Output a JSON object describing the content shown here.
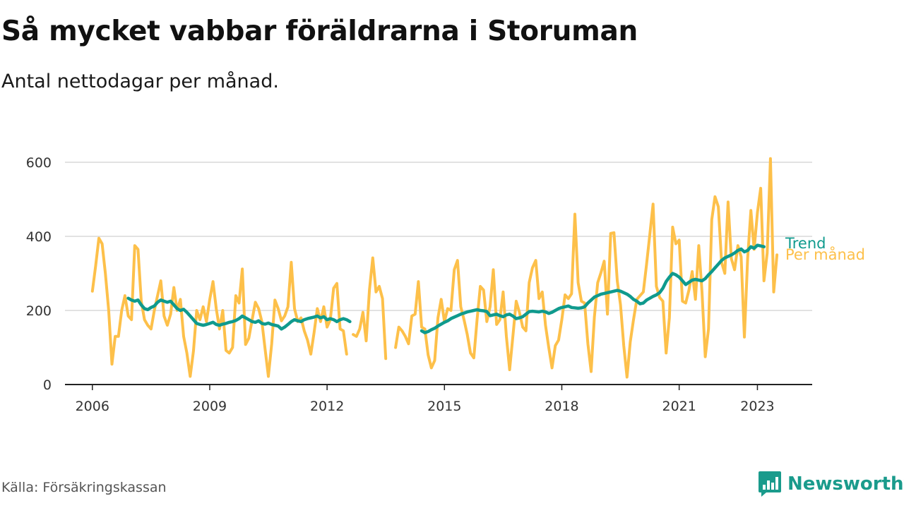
{
  "header": {
    "title": "Så mycket vabbar föräldrarna i Storuman",
    "subtitle": "Antal nettodagar per månad."
  },
  "footer": {
    "source": "Källa: Försäkringskassan",
    "brand": "Newsworthy",
    "brand_icon": "bar-chart-icon",
    "brand_color": "#1a9b8c"
  },
  "chart_data": {
    "type": "line",
    "title": "Så mycket vabbar föräldrarna i Storuman",
    "subtitle": "Antal nettodagar per månad.",
    "xlabel": "",
    "ylabel": "",
    "xlim": [
      2005.3,
      2024.4
    ],
    "ylim": [
      0,
      600
    ],
    "x_ticks": [
      2006,
      2009,
      2012,
      2015,
      2018,
      2021,
      2023
    ],
    "y_ticks": [
      0,
      200,
      400,
      600
    ],
    "grid": "horizontal",
    "legend": "end-of-line labels",
    "series": [
      {
        "name": "Per månad",
        "color": "#fdc04a",
        "segments": [
          {
            "x_start": 2006.0,
            "x_step": 0.0833333,
            "values": [
              252,
              320,
              395,
              380,
              300,
              200,
              55,
              130,
              130,
              200,
              240,
              185,
              175,
              375,
              365,
              225,
              175,
              160,
              150,
              200,
              240,
              280,
              185,
              160,
              190,
              262,
              200,
              230,
              130,
              85,
              22,
              90,
              200,
              175,
              210,
              170,
              230,
              278,
              205,
              150,
              200,
              92,
              85,
              100,
              240,
              220,
              312,
              108,
              125,
              175,
              222,
              205,
              170,
              95,
              22,
              110,
              228,
              205,
              172,
              185,
              210,
              330,
              205,
              170,
              180,
              145,
              120,
              82,
              140,
              205,
              170,
              210,
              155,
              175,
              260,
              273,
              150,
              145,
              82
            ]
          },
          {
            "x_start": 2012.6667,
            "x_step": 0.0833333,
            "values": [
              135,
              130,
              150,
              195,
              118,
              255,
              342,
              250,
              265,
              232,
              70
            ]
          },
          {
            "x_start": 2013.75,
            "x_step": 0.0833333,
            "values": [
              100,
              155,
              145,
              130,
              110,
              185,
              190,
              278,
              155,
              150,
              80,
              45,
              65,
              180,
              230,
              170,
              205,
              200,
              310,
              335,
              210,
              175,
              135,
              85,
              72,
              175,
              265,
              255,
              170,
              210,
              310,
              162,
              175,
              250,
              130,
              40,
              130,
              225,
              195,
              155,
              145,
              275,
              315,
              335,
              232,
              250,
              160,
              100,
              45,
              105,
              120,
              175,
              242,
              232,
              245,
              460,
              275,
              225,
              220,
              110,
              35,
              182,
              275,
              302,
              333,
              190,
              408,
              410,
              280,
              215,
              105,
              20,
              115,
              175,
              230,
              240,
              250,
              325,
              405,
              487,
              265,
              235,
              225,
              85,
              180,
              425,
              380,
              390,
              225,
              220,
              255,
              305,
              230,
              375,
              250,
              75,
              150,
              445,
              507,
              480,
              330,
              300,
              493,
              340,
              310,
              375,
              345,
              128,
              340,
              470,
              365,
              465,
              530,
              280,
              355,
              610,
              250,
              350
            ]
          }
        ]
      },
      {
        "name": "Trend",
        "color": "#0f9a8d",
        "segments": [
          {
            "x_start": 2006.9167,
            "x_step": 0.0833333,
            "values": [
              233,
              228,
              225,
              228,
              215,
              205,
              202,
              208,
              212,
              222,
              228,
              225,
              222,
              225,
              215,
              205,
              200,
              203,
              195,
              185,
              175,
              165,
              162,
              160,
              162,
              165,
              168,
              162,
              160,
              163,
              165,
              168,
              170,
              173,
              178,
              185,
              180,
              175,
              170,
              168,
              172,
              165,
              163,
              166,
              162,
              160,
              158,
              150,
              155,
              162,
              170,
              175,
              172,
              170,
              175,
              178,
              180,
              182,
              185,
              180,
              183,
              175,
              178,
              175,
              170,
              175,
              178,
              175,
              170
            ]
          },
          {
            "x_start": 2014.4167,
            "x_step": 0.0833333,
            "values": [
              145,
              140,
              143,
              148,
              152,
              158,
              163,
              168,
              172,
              178,
              182,
              186,
              190,
              193,
              196,
              198,
              200,
              202,
              200,
              199,
              197,
              186,
              188,
              190,
              186,
              183,
              188,
              190,
              185,
              178,
              180,
              183,
              190,
              197,
              198,
              197,
              196,
              198,
              196,
              192,
              195,
              200,
              205,
              208,
              210,
              212,
              208,
              207,
              206,
              207,
              210,
              220,
              228,
              236,
              240,
              244,
              246,
              248,
              250,
              252,
              254,
              252,
              248,
              244,
              238,
              230,
              225,
              218,
              220,
              228,
              233,
              238,
              242,
              248,
              260,
              278,
              290,
              300,
              296,
              290,
              280,
              270,
              276,
              282,
              284,
              282,
              280,
              286,
              296,
              305,
              315,
              325,
              335,
              342,
              346,
              350,
              355,
              362,
              366,
              358,
              362,
              372,
              368,
              376,
              374,
              372
            ]
          }
        ]
      }
    ],
    "labels": {
      "trend": "Trend",
      "monthly": "Per månad"
    }
  }
}
